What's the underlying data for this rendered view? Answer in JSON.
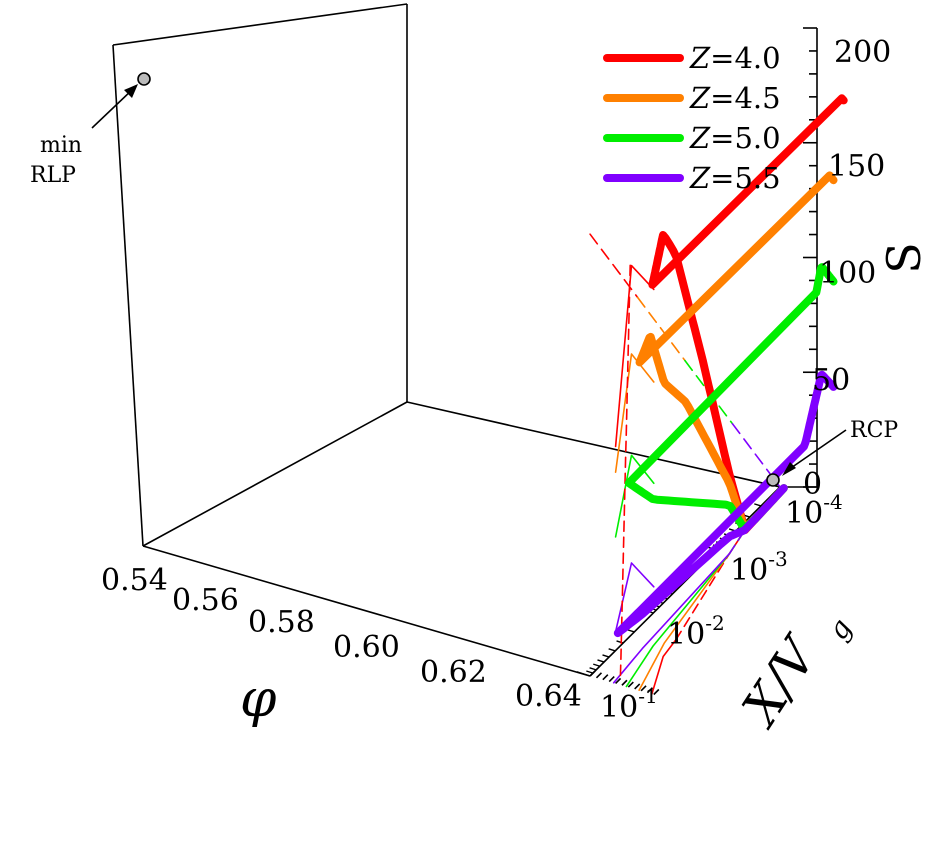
{
  "chart_data": {
    "type": "line",
    "subtype": "3d-surface-curves",
    "title": "",
    "axes": {
      "x": {
        "label": "φ",
        "ticks": [
          "0.54",
          "0.56",
          "0.58",
          "0.60",
          "0.62",
          "0.64"
        ],
        "range": [
          0.54,
          0.64
        ]
      },
      "y": {
        "label": "X/V",
        "label_sub": "g",
        "scale": "log",
        "ticks": [
          "10",
          "10",
          "10",
          "10"
        ],
        "tick_exponents": [
          "-4",
          "-3",
          "-2",
          "-1"
        ],
        "range": [
          0.0001,
          0.1
        ]
      },
      "z": {
        "label": "S",
        "ticks": [
          "0",
          "50",
          "100",
          "150",
          "200"
        ],
        "range": [
          0,
          200
        ]
      }
    },
    "legend": {
      "placement": "top-right",
      "entries": [
        {
          "label_var": "Z",
          "label_val": "=4.0",
          "color": "#ff0000"
        },
        {
          "label_var": "Z",
          "label_val": "=4.5",
          "color": "#ff8000"
        },
        {
          "label_var": "Z",
          "label_val": "=5.0",
          "color": "#00ee00"
        },
        {
          "label_var": "Z",
          "label_val": "=5.5",
          "color": "#8000ff"
        }
      ]
    },
    "series": [
      {
        "name": "Z =4.0",
        "color": "#ff0000",
        "phi_X": [
          [
            0.543,
            0.1
          ],
          [
            0.575,
            0.0316
          ],
          [
            0.58,
            0.0178
          ],
          [
            0.62,
            0.001
          ],
          [
            0.63,
            0.00045
          ],
          [
            0.634,
            0.0001
          ]
        ],
        "phi_S": [
          [
            0.54,
            188
          ],
          [
            0.575,
            196
          ],
          [
            0.6,
            110
          ],
          [
            0.63,
            12
          ],
          [
            0.634,
            0
          ]
        ]
      },
      {
        "name": "Z =4.5",
        "color": "#ff8000",
        "phi_X": [
          [
            0.563,
            0.1
          ],
          [
            0.59,
            0.0215
          ],
          [
            0.62,
            0.001
          ],
          [
            0.63,
            0.00045
          ],
          [
            0.634,
            0.0001
          ]
        ],
        "phi_S": [
          [
            0.54,
            145
          ],
          [
            0.575,
            155
          ],
          [
            0.6,
            98
          ]
        ]
      },
      {
        "name": "Z =5.0",
        "color": "#00ee00",
        "phi_X": [
          [
            0.583,
            0.1
          ],
          [
            0.6,
            0.0255
          ],
          [
            0.62,
            0.001
          ],
          [
            0.63,
            0.00045
          ],
          [
            0.634,
            0.0001
          ]
        ],
        "phi_S": [
          [
            0.54,
            98
          ],
          [
            0.575,
            108
          ],
          [
            0.6,
            68
          ]
        ]
      },
      {
        "name": "Z =5.5",
        "color": "#8000ff",
        "phi_X": [
          [
            0.603,
            0.1
          ],
          [
            0.61,
            0.03
          ],
          [
            0.62,
            0.001
          ],
          [
            0.63,
            0.00045
          ],
          [
            0.634,
            0.0001
          ]
        ],
        "phi_S": [
          [
            0.54,
            50
          ],
          [
            0.575,
            58
          ],
          [
            0.6,
            24
          ]
        ]
      }
    ],
    "annotations": [
      {
        "line1": "min",
        "line2": "RLP"
      },
      {
        "text": "RCP"
      }
    ]
  }
}
